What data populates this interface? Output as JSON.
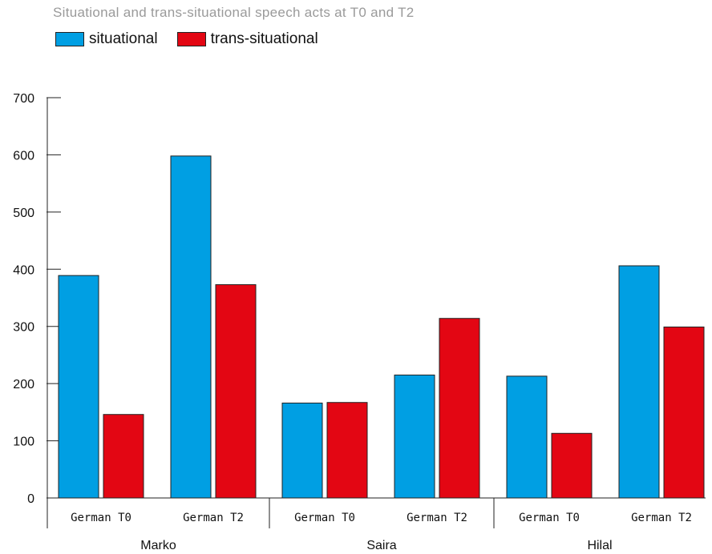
{
  "chart_data": {
    "type": "bar",
    "title": "Situational and trans-situational speech acts at T0 and T2",
    "groups": [
      "Marko",
      "Saira",
      "Hilal"
    ],
    "categories": [
      "German T0",
      "German T2",
      "German T0",
      "German T2",
      "German T0",
      "German T2"
    ],
    "series": [
      {
        "name": "situational",
        "color": "#009fe3",
        "values": [
          389,
          598,
          166,
          215,
          213,
          406
        ]
      },
      {
        "name": "trans-situational",
        "color": "#e30613",
        "values": [
          146,
          373,
          167,
          314,
          113,
          299
        ]
      }
    ],
    "yticks": [
      0,
      100,
      200,
      300,
      400,
      500,
      600,
      700
    ],
    "ylim": [
      0,
      700
    ],
    "xlabel": "",
    "ylabel": "",
    "grid": false,
    "legend_position": "top-left"
  }
}
